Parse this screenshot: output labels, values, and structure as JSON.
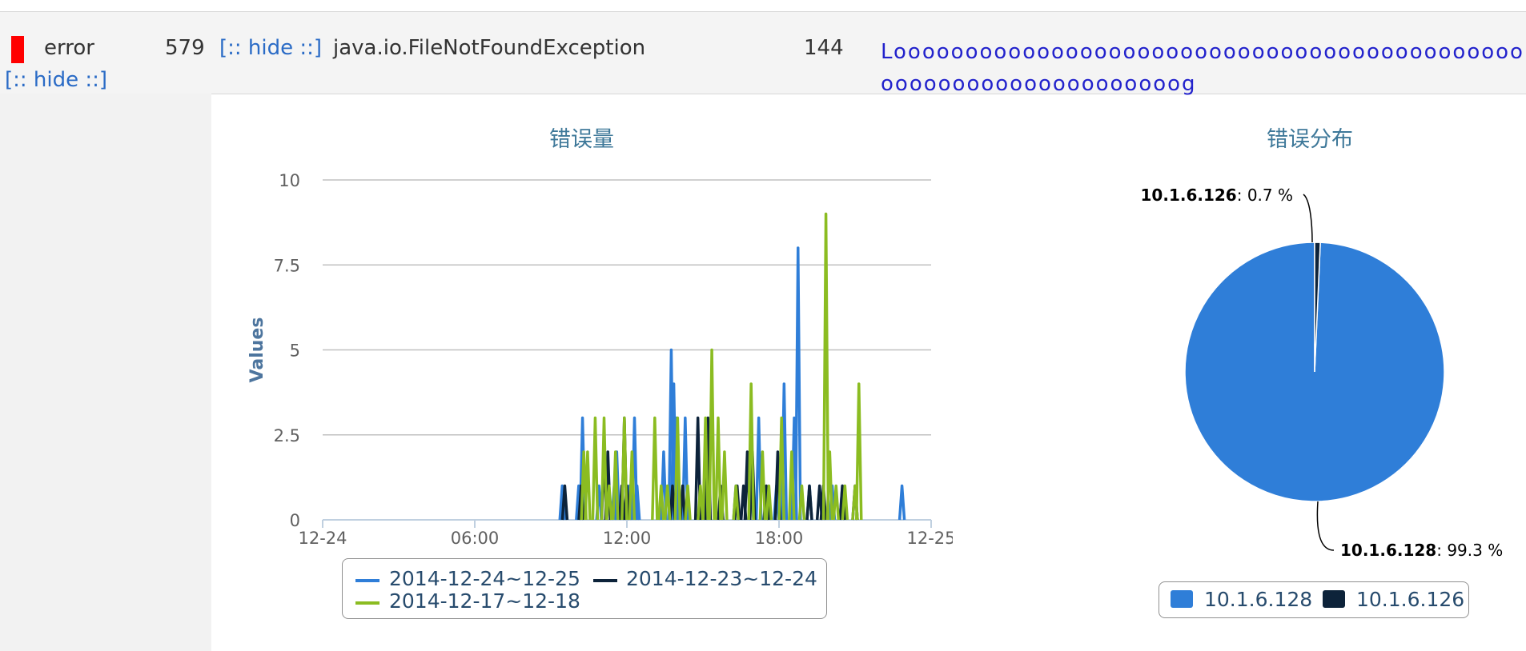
{
  "row": {
    "level": "error",
    "count": "579",
    "hide_label": "[:: hide ::]",
    "hide_label2": "[:: hide ::]",
    "exception": "java.io.FileNotFoundException",
    "count2": "144",
    "message": "Looooooooooooooooooooooooooooooooooooooooooooooooooooooooooooooooog",
    "marker_color": "#ff0000"
  },
  "chart_data": [
    {
      "type": "line",
      "title": "错误量",
      "ylabel": "Values",
      "xlabel": "",
      "x_tick_labels": [
        "12-24",
        "06:00",
        "12:00",
        "18:00",
        "12-25"
      ],
      "y_ticks": [
        0,
        2.5,
        5,
        7.5,
        10
      ],
      "ylim": [
        0,
        10
      ],
      "xlim_hours": [
        0,
        24
      ],
      "grid": true,
      "legend_placement": "bottom",
      "series": [
        {
          "name": "2014-12-24~12-25",
          "color": "#2f7ed8",
          "points": [
            [
              9.45,
              1
            ],
            [
              10.1,
              1
            ],
            [
              10.25,
              3
            ],
            [
              10.9,
              1
            ],
            [
              11.5,
              1
            ],
            [
              11.6,
              2
            ],
            [
              12.1,
              1
            ],
            [
              12.3,
              3
            ],
            [
              12.4,
              1
            ],
            [
              13.45,
              2
            ],
            [
              13.75,
              5
            ],
            [
              13.85,
              4
            ],
            [
              13.95,
              3
            ],
            [
              14.3,
              3
            ],
            [
              15.1,
              1
            ],
            [
              16.3,
              1
            ],
            [
              16.9,
              1
            ],
            [
              17.2,
              3
            ],
            [
              17.9,
              1
            ],
            [
              18.2,
              4
            ],
            [
              18.6,
              3
            ],
            [
              18.75,
              8
            ],
            [
              19.2,
              1
            ],
            [
              20.1,
              1
            ],
            [
              20.5,
              1
            ],
            [
              22.85,
              1
            ]
          ]
        },
        {
          "name": "2014-12-23~12-24",
          "color": "#0d233a",
          "points": [
            [
              9.55,
              1
            ],
            [
              10.2,
              1
            ],
            [
              11.1,
              2
            ],
            [
              11.25,
              2
            ],
            [
              11.8,
              1
            ],
            [
              11.9,
              3
            ],
            [
              12.0,
              1
            ],
            [
              13.8,
              1
            ],
            [
              14.2,
              1
            ],
            [
              14.8,
              3
            ],
            [
              15.2,
              3
            ],
            [
              15.7,
              1
            ],
            [
              16.35,
              1
            ],
            [
              16.6,
              1
            ],
            [
              16.75,
              2
            ],
            [
              16.95,
              2
            ],
            [
              17.5,
              1
            ],
            [
              17.95,
              2
            ],
            [
              19.2,
              1
            ],
            [
              19.6,
              1
            ],
            [
              19.75,
              1
            ],
            [
              20.5,
              1
            ],
            [
              21.0,
              1
            ]
          ]
        },
        {
          "name": "2014-12-17~12-18",
          "color": "#8bbc21",
          "points": [
            [
              10.3,
              2
            ],
            [
              10.45,
              2
            ],
            [
              10.75,
              3
            ],
            [
              11.1,
              3
            ],
            [
              11.3,
              1
            ],
            [
              11.55,
              2
            ],
            [
              11.9,
              3
            ],
            [
              12.2,
              2
            ],
            [
              13.1,
              3
            ],
            [
              13.35,
              1
            ],
            [
              13.6,
              1
            ],
            [
              14.0,
              3
            ],
            [
              14.4,
              1
            ],
            [
              14.9,
              1
            ],
            [
              15.1,
              3
            ],
            [
              15.35,
              5
            ],
            [
              15.6,
              3
            ],
            [
              15.85,
              2
            ],
            [
              16.3,
              1
            ],
            [
              16.9,
              4
            ],
            [
              17.35,
              2
            ],
            [
              17.6,
              1
            ],
            [
              18.1,
              3
            ],
            [
              18.5,
              2
            ],
            [
              18.9,
              1
            ],
            [
              19.85,
              9
            ],
            [
              20.0,
              2
            ],
            [
              20.25,
              1
            ],
            [
              20.6,
              1
            ],
            [
              21.0,
              1
            ],
            [
              21.15,
              4
            ]
          ]
        }
      ]
    },
    {
      "type": "pie",
      "title": "错误分布",
      "legend_placement": "bottom",
      "slices": [
        {
          "name": "10.1.6.128",
          "value": 99.3,
          "label": "99.3 %",
          "color": "#2f7ed8"
        },
        {
          "name": "10.1.6.126",
          "value": 0.7,
          "label": "0.7 %",
          "color": "#0d233a"
        }
      ]
    }
  ]
}
